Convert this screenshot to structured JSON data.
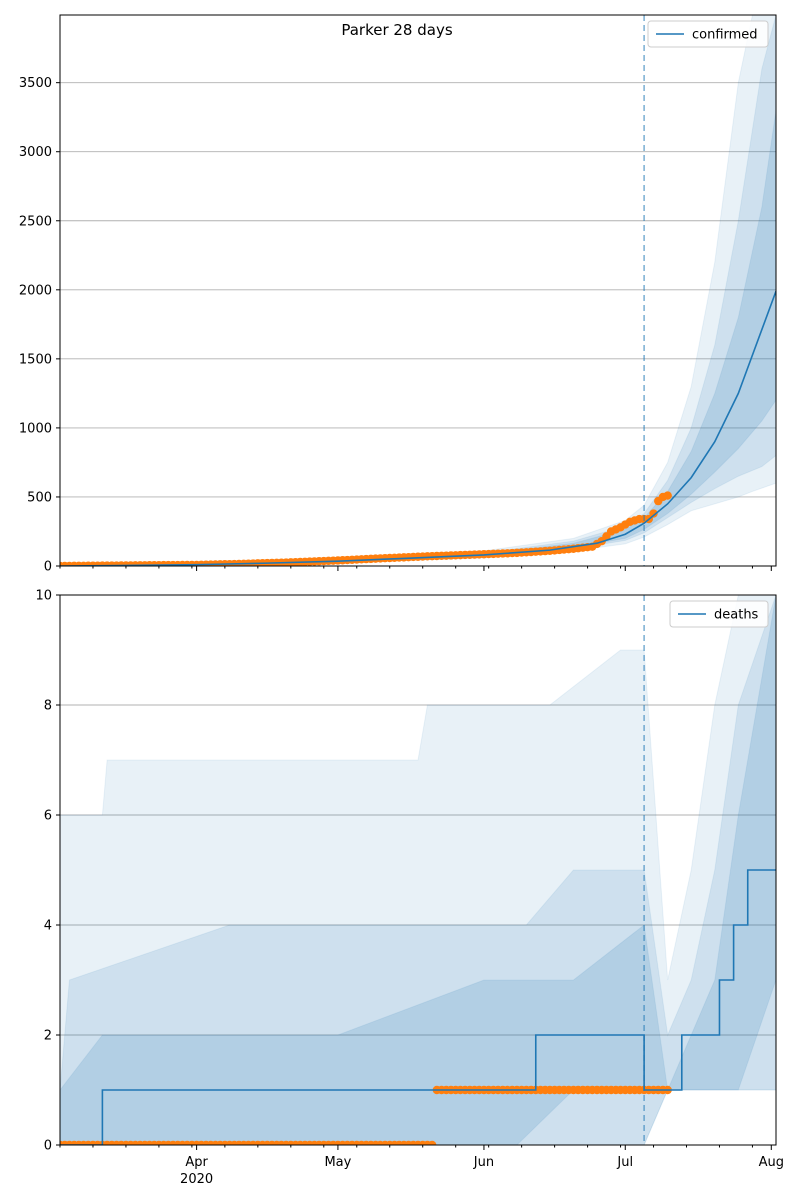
{
  "chart_data": [
    {
      "type": "line",
      "title": "Parker 28 days",
      "xlabel": "",
      "ylabel": "",
      "x_range": [
        "2020-03-03",
        "2020-08-02"
      ],
      "ylim": [
        0,
        3990
      ],
      "yticks": [
        0,
        500,
        1000,
        1500,
        2000,
        2500,
        3000,
        3500
      ],
      "xticks": [
        {
          "date": "2020-04-01",
          "label": "Apr",
          "sublabel": "2020"
        },
        {
          "date": "2020-05-01",
          "label": "May",
          "sublabel": ""
        },
        {
          "date": "2020-06-01",
          "label": "Jun",
          "sublabel": ""
        },
        {
          "date": "2020-07-01",
          "label": "Jul",
          "sublabel": ""
        },
        {
          "date": "2020-08-01",
          "label": "Aug",
          "sublabel": ""
        }
      ],
      "grid": "y",
      "legend_position": "top-right",
      "forecast_start": "2020-07-05",
      "line_color": "#1f77b4",
      "observed_color": "#ff7f0e",
      "series": [
        {
          "name": "confirmed",
          "x": [
            "2020-03-03",
            "2020-03-15",
            "2020-04-01",
            "2020-04-15",
            "2020-05-01",
            "2020-05-15",
            "2020-06-01",
            "2020-06-15",
            "2020-06-25",
            "2020-07-01",
            "2020-07-05",
            "2020-07-10",
            "2020-07-15",
            "2020-07-20",
            "2020-07-25",
            "2020-08-02"
          ],
          "values": [
            0,
            3,
            10,
            20,
            35,
            55,
            80,
            115,
            165,
            230,
            310,
            450,
            640,
            900,
            1250,
            1990
          ]
        }
      ],
      "observed": {
        "x": [
          "2020-03-03",
          "2020-03-20",
          "2020-04-01",
          "2020-04-10",
          "2020-04-20",
          "2020-05-01",
          "2020-05-10",
          "2020-05-20",
          "2020-06-01",
          "2020-06-08",
          "2020-06-15",
          "2020-06-20",
          "2020-06-24",
          "2020-06-26",
          "2020-06-28",
          "2020-06-30",
          "2020-07-02",
          "2020-07-04",
          "2020-07-06",
          "2020-07-07",
          "2020-07-08",
          "2020-07-09",
          "2020-07-10"
        ],
        "values": [
          0,
          5,
          8,
          15,
          25,
          40,
          55,
          70,
          85,
          95,
          110,
          125,
          140,
          180,
          250,
          280,
          320,
          340,
          340,
          380,
          470,
          500,
          510
        ]
      },
      "bands": [
        {
          "x": [
            "2020-03-03",
            "2020-04-01",
            "2020-05-01",
            "2020-06-01",
            "2020-06-20",
            "2020-07-01",
            "2020-07-05",
            "2020-07-10",
            "2020-07-15",
            "2020-07-20",
            "2020-07-25",
            "2020-07-28",
            "2020-08-02"
          ],
          "lower": [
            0,
            5,
            25,
            60,
            110,
            160,
            210,
            300,
            400,
            450,
            500,
            540,
            600
          ],
          "upper": [
            20,
            30,
            60,
            110,
            200,
            330,
            440,
            750,
            1300,
            2200,
            3500,
            3990,
            3990
          ]
        },
        {
          "x": [
            "2020-03-03",
            "2020-04-01",
            "2020-05-01",
            "2020-06-01",
            "2020-06-20",
            "2020-07-01",
            "2020-07-05",
            "2020-07-10",
            "2020-07-15",
            "2020-07-20",
            "2020-07-25",
            "2020-07-30",
            "2020-08-02"
          ],
          "lower": [
            0,
            7,
            28,
            68,
            125,
            185,
            240,
            350,
            460,
            560,
            650,
            720,
            800
          ],
          "upper": [
            12,
            20,
            48,
            95,
            180,
            290,
            380,
            620,
            1000,
            1600,
            2500,
            3600,
            3990
          ]
        },
        {
          "x": [
            "2020-03-03",
            "2020-04-01",
            "2020-05-01",
            "2020-06-01",
            "2020-06-20",
            "2020-07-01",
            "2020-07-05",
            "2020-07-10",
            "2020-07-15",
            "2020-07-20",
            "2020-07-25",
            "2020-07-30",
            "2020-08-02"
          ],
          "lower": [
            0,
            8,
            30,
            72,
            135,
            200,
            265,
            380,
            520,
            680,
            850,
            1050,
            1200
          ],
          "upper": [
            8,
            15,
            42,
            88,
            165,
            265,
            350,
            540,
            830,
            1250,
            1800,
            2600,
            3300
          ]
        }
      ]
    },
    {
      "type": "line",
      "title": "",
      "xlabel": "",
      "ylabel": "",
      "x_range": [
        "2020-03-03",
        "2020-08-02"
      ],
      "ylim": [
        0,
        10
      ],
      "yticks": [
        0,
        2,
        4,
        6,
        8,
        10
      ],
      "xticks": [
        {
          "date": "2020-04-01",
          "label": "Apr",
          "sublabel": "2020"
        },
        {
          "date": "2020-05-01",
          "label": "May",
          "sublabel": ""
        },
        {
          "date": "2020-06-01",
          "label": "Jun",
          "sublabel": ""
        },
        {
          "date": "2020-07-01",
          "label": "Jul",
          "sublabel": ""
        },
        {
          "date": "2020-08-01",
          "label": "Aug",
          "sublabel": ""
        }
      ],
      "grid": "y",
      "legend_position": "top-right",
      "forecast_start": "2020-07-05",
      "line_color": "#1f77b4",
      "observed_color": "#ff7f0e",
      "series": [
        {
          "name": "deaths",
          "step": true,
          "x": [
            "2020-03-03",
            "2020-03-12",
            "2020-03-12",
            "2020-06-12",
            "2020-06-12",
            "2020-07-05",
            "2020-07-05",
            "2020-07-13",
            "2020-07-13",
            "2020-07-21",
            "2020-07-21",
            "2020-07-24",
            "2020-07-24",
            "2020-07-27",
            "2020-07-27",
            "2020-07-30",
            "2020-07-30",
            "2020-08-02"
          ],
          "values": [
            0,
            0,
            1,
            1,
            2,
            2,
            1,
            1,
            2,
            2,
            3,
            3,
            4,
            4,
            5,
            5,
            5,
            5
          ]
        }
      ],
      "observed": {
        "step": true,
        "x": [
          "2020-03-03",
          "2020-05-20",
          "2020-05-21",
          "2020-07-10"
        ],
        "values": [
          0,
          0,
          1,
          1
        ]
      },
      "bands": [
        {
          "x": [
            "2020-03-03",
            "2020-03-12",
            "2020-03-13",
            "2020-04-30",
            "2020-05-18",
            "2020-05-20",
            "2020-06-01",
            "2020-06-15",
            "2020-06-30",
            "2020-07-05",
            "2020-07-10",
            "2020-07-15",
            "2020-07-20",
            "2020-07-25",
            "2020-08-02"
          ],
          "lower": [
            0,
            0,
            0,
            0,
            0,
            0,
            0,
            0,
            0,
            0,
            1,
            1,
            1,
            1,
            1
          ],
          "upper": [
            6,
            6,
            7,
            7,
            7,
            8,
            8,
            8,
            9,
            9,
            3,
            5,
            8,
            10,
            10
          ]
        },
        {
          "x": [
            "2020-03-03",
            "2020-03-05",
            "2020-04-08",
            "2020-05-15",
            "2020-06-01",
            "2020-06-10",
            "2020-06-20",
            "2020-07-05",
            "2020-07-10",
            "2020-07-15",
            "2020-07-20",
            "2020-07-25",
            "2020-08-02"
          ],
          "lower": [
            0,
            0,
            0,
            0,
            0,
            0,
            0,
            0,
            1,
            1,
            1,
            1,
            1
          ],
          "upper": [
            1,
            3,
            4,
            4,
            4,
            4,
            5,
            5,
            2,
            3,
            5,
            8,
            10
          ]
        },
        {
          "x": [
            "2020-03-03",
            "2020-03-12",
            "2020-04-01",
            "2020-05-01",
            "2020-06-01",
            "2020-06-08",
            "2020-06-20",
            "2020-07-05",
            "2020-07-10",
            "2020-07-15",
            "2020-07-20",
            "2020-07-25",
            "2020-08-02"
          ],
          "lower": [
            0,
            0,
            0,
            0,
            0,
            0,
            1,
            1,
            1,
            1,
            1,
            1,
            3
          ],
          "upper": [
            1,
            2,
            2,
            2,
            3,
            3,
            3,
            4,
            1,
            2,
            3,
            6,
            10
          ]
        }
      ]
    }
  ]
}
